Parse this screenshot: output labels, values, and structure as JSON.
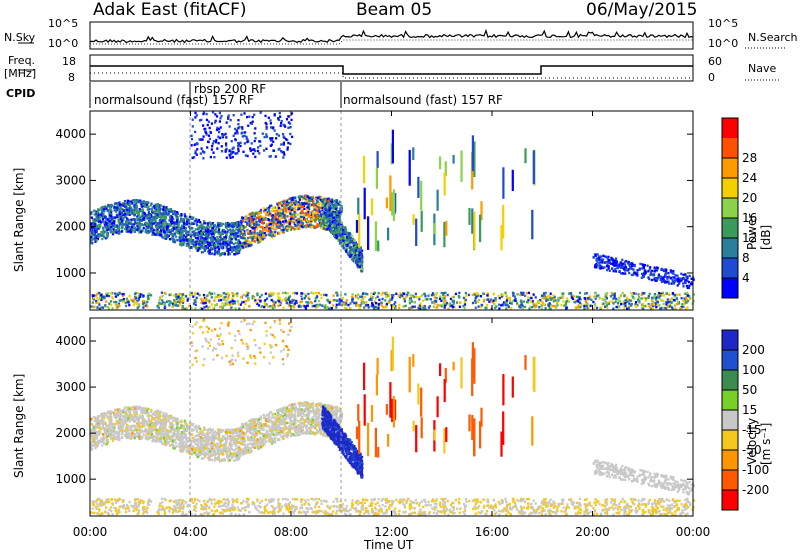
{
  "header": {
    "station": "Adak East (fitACF)",
    "beam": "Beam 05",
    "date": "06/May/2015"
  },
  "noise_panel": {
    "left_label": "N.Sky",
    "right_label": "N.Search",
    "left_ticks": [
      "10^5",
      "10^0"
    ],
    "right_ticks": [
      "10^5",
      "10^0"
    ]
  },
  "freq_panel": {
    "left_label_1": "Freq.",
    "left_label_2": "[MHz]",
    "right_label": "Nave",
    "left_ticks": [
      "18",
      "8"
    ],
    "right_ticks": [
      "60",
      "0"
    ]
  },
  "cpid_panel": {
    "label": "CPID",
    "segments": [
      "normalsound (fast) 157 RF",
      "rbsp 200 RF",
      "normalsound (fast) 157 RF"
    ]
  },
  "chart_data": [
    {
      "type": "heatmap",
      "name": "power",
      "ylabel": "Slant Range [km]",
      "xlabel": "Time UT",
      "xticks": [
        "00:00",
        "04:00",
        "08:00",
        "12:00",
        "16:00",
        "20:00",
        "00:00"
      ],
      "xlim_hours": [
        0,
        24
      ],
      "yticks": [
        1000,
        2000,
        3000,
        4000
      ],
      "ylim": [
        200,
        4500
      ],
      "colorbar": {
        "label": "Power [dB]",
        "ticks": [
          "4",
          "8",
          "12",
          "16",
          "20",
          "24",
          "28"
        ],
        "colors": [
          "#0000ff",
          "#1e4bd2",
          "#2a7f9a",
          "#3c9a5a",
          "#8bd34a",
          "#f5d000",
          "#ff9a00",
          "#ff5000",
          "#ff0000"
        ]
      },
      "features": [
        {
          "time": [
            0,
            10
          ],
          "range_km": [
            1600,
            2400
          ],
          "level": "4–24 dB"
        },
        {
          "time": [
            6,
            9.5
          ],
          "range_km": [
            1800,
            2200
          ],
          "level": "16–28 dB"
        },
        {
          "time": [
            9,
            11
          ],
          "range_km": [
            1100,
            2400
          ],
          "level": "4–20 dB"
        },
        {
          "time": [
            4,
            8
          ],
          "range_km": [
            3500,
            4500
          ],
          "level": "4–8 dB"
        },
        {
          "time": [
            0,
            24
          ],
          "range_km": [
            200,
            600
          ],
          "level": "4–24 dB"
        }
      ]
    },
    {
      "type": "heatmap",
      "name": "velocity",
      "ylabel": "Slant Range [km]",
      "xlabel": "Time UT",
      "xticks": [
        "00:00",
        "04:00",
        "08:00",
        "12:00",
        "16:00",
        "20:00",
        "00:00"
      ],
      "xlim_hours": [
        0,
        24
      ],
      "yticks": [
        1000,
        2000,
        3000,
        4000
      ],
      "ylim": [
        200,
        4500
      ],
      "colorbar": {
        "label": "Velocity [m s⁻¹]",
        "ticks": [
          "200",
          "100",
          "50",
          "15",
          "-15",
          "-50",
          "-100",
          "-200"
        ],
        "colors": [
          "#1e28c8",
          "#2050d0",
          "#3c8c50",
          "#78d028",
          "#c8c8c8",
          "#f5c820",
          "#ff9600",
          "#ff5a00",
          "#ff0000"
        ]
      },
      "features": [
        {
          "time": [
            0,
            10
          ],
          "range_km": [
            1600,
            2400
          ],
          "velocity": "-15 to 15 m/s"
        },
        {
          "time": [
            9.5,
            11
          ],
          "range_km": [
            1200,
            2200
          ],
          "velocity": "100 to 200 m/s"
        },
        {
          "time": [
            10,
            17
          ],
          "range_km": [
            1500,
            3500
          ],
          "velocity": "-50 to -200 m/s"
        }
      ]
    }
  ]
}
